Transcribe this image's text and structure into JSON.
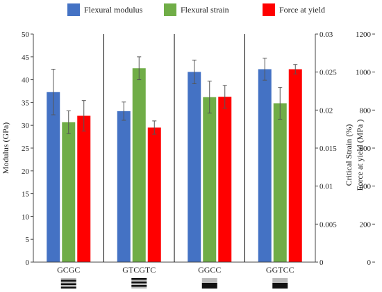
{
  "chart_data": {
    "type": "bar",
    "categories": [
      "GCGC",
      "GTCGTC",
      "GGCC",
      "GGTCC"
    ],
    "legend_position": "top",
    "grid": false,
    "series": [
      {
        "name": "Flexural modulus",
        "color": "#4472C4",
        "axis": "left",
        "values": [
          37.3,
          33.1,
          41.7,
          42.3
        ],
        "errors": [
          5.0,
          2.0,
          2.6,
          2.4
        ]
      },
      {
        "name": "Flexural strain",
        "color": "#70AD47",
        "axis": "right1",
        "values": [
          0.0184,
          0.0255,
          0.0217,
          0.0209
        ],
        "errors": [
          0.0015,
          0.0015,
          0.0021,
          0.0021
        ]
      },
      {
        "name": "Force at yield",
        "color": "#FF0000",
        "axis": "right2",
        "values": [
          770,
          708,
          870,
          1015
        ],
        "errors": [
          80,
          35,
          60,
          25
        ]
      }
    ],
    "axes": {
      "left": {
        "title": "Modulus (GPa)",
        "min": 0,
        "max": 50,
        "ticks": [
          0,
          5,
          10,
          15,
          20,
          25,
          30,
          35,
          40,
          45,
          50
        ]
      },
      "right1": {
        "title": "Critical Strain (%)",
        "min": 0,
        "max": 0.03,
        "ticks": [
          0,
          0.005,
          0.01,
          0.015,
          0.02,
          0.025,
          0.03
        ],
        "tick_labels": [
          "0",
          "0.005",
          "0.01",
          "0.015",
          "0.02",
          "0.025",
          "0.03"
        ]
      },
      "right2": {
        "title": "Force at yield (MPa )",
        "min": 0,
        "max": 1200,
        "ticks": [
          0,
          200,
          400,
          600,
          800,
          1000,
          1200
        ]
      }
    },
    "category_icons": [
      {
        "pattern": "stripes-gray-black"
      },
      {
        "pattern": "stripes-black-gray"
      },
      {
        "pattern": "blocks-gray-black"
      },
      {
        "pattern": "blocks-gray-black"
      }
    ]
  }
}
